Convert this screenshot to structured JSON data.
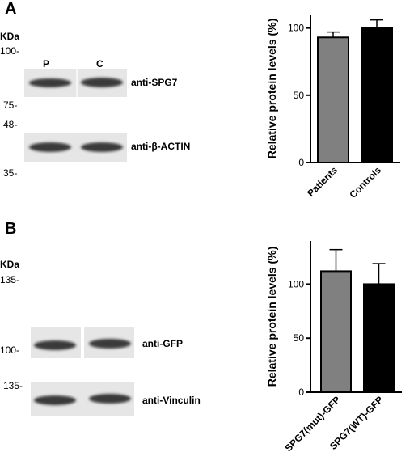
{
  "panel_a": {
    "label": "A",
    "kda_label": "KDa",
    "markers": [
      "100-",
      "75-",
      "48-",
      "35-"
    ],
    "lanes": [
      "P",
      "C"
    ],
    "antibodies": [
      "anti-SPG7",
      "anti-β-ACTIN"
    ]
  },
  "panel_b": {
    "label": "B",
    "kda_label": "KDa",
    "markers": [
      "135-",
      "100-",
      "135-"
    ],
    "antibodies": [
      "anti-GFP",
      "anti-Vinculin"
    ]
  },
  "colors": {
    "patients": "#808080",
    "controls": "#000000",
    "blot_bg": "#e6e6e6",
    "band": "#3a3a3a"
  },
  "chart_data": [
    {
      "type": "bar",
      "categories": [
        "Patients",
        "Controls"
      ],
      "values": [
        93,
        100
      ],
      "errors": [
        4,
        6
      ],
      "bar_colors": [
        "#808080",
        "#000000"
      ],
      "ylabel": "Relative protein levels (%)",
      "ylim": [
        0,
        110
      ],
      "yticks": [
        0,
        50,
        100
      ],
      "grid": false
    },
    {
      "type": "bar",
      "categories": [
        "SPG7(mut)-GFP",
        "SPG7(WT)-GFP"
      ],
      "values": [
        112,
        100
      ],
      "errors": [
        20,
        19
      ],
      "bar_colors": [
        "#808080",
        "#000000"
      ],
      "ylabel": "Relative protein levels (%)",
      "ylim": [
        0,
        140
      ],
      "yticks": [
        0,
        50,
        100
      ],
      "grid": false
    }
  ]
}
